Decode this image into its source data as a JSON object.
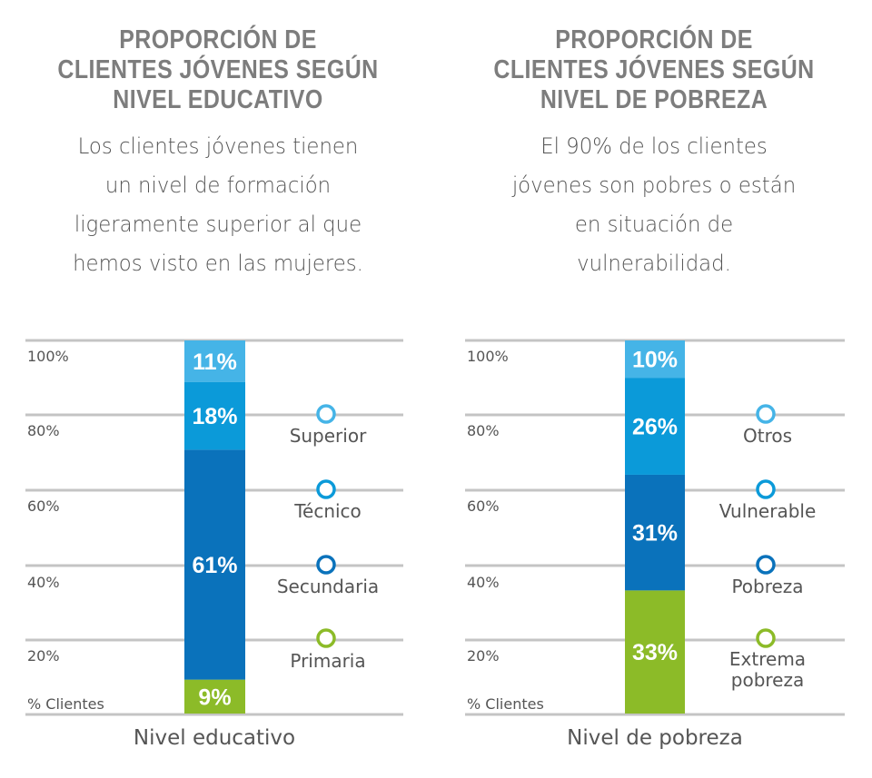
{
  "chart_data": [
    {
      "type": "bar",
      "stacked": true,
      "title": [
        "PROPORCIÓN DE",
        "CLIENTES JÓVENES SEGÚN",
        "NIVEL EDUCATIVO"
      ],
      "subtitle": [
        "Los clientes jóvenes tienen",
        "un nivel de formación",
        "ligeramente superior al que",
        "hemos visto en las mujeres."
      ],
      "xlabel": "Nivel educativo",
      "ylabel": "% Clientes",
      "yticks": [
        "100%",
        "80%",
        "60%",
        "40%",
        "20%"
      ],
      "ylim": [
        0,
        100
      ],
      "grid": true,
      "legend_position": "right",
      "series": [
        {
          "name": "Primaria",
          "value": 9,
          "label": "9%",
          "color": "#8cbb28"
        },
        {
          "name": "Secundaria",
          "value": 61,
          "label": "61%",
          "color": "#0a72bb"
        },
        {
          "name": "Técnico",
          "value": 18,
          "label": "18%",
          "color": "#0b9ad9"
        },
        {
          "name": "Superior",
          "value": 11,
          "label": "11%",
          "color": "#45b4e7"
        }
      ]
    },
    {
      "type": "bar",
      "stacked": true,
      "title": [
        "PROPORCIÓN DE",
        "CLIENTES JÓVENES SEGÚN",
        "NIVEL DE POBREZA"
      ],
      "subtitle": [
        "El 90% de los clientes",
        "jóvenes son pobres o están",
        "en situación de",
        "vulnerabilidad."
      ],
      "xlabel": "Nivel de pobreza",
      "ylabel": "% Clientes",
      "yticks": [
        "100%",
        "80%",
        "60%",
        "40%",
        "20%"
      ],
      "ylim": [
        0,
        100
      ],
      "grid": true,
      "legend_position": "right",
      "series": [
        {
          "name": [
            "Extrema",
            "pobreza"
          ],
          "value": 33,
          "label": "33%",
          "color": "#8cbb28"
        },
        {
          "name": [
            "Pobreza"
          ],
          "value": 31,
          "label": "31%",
          "color": "#0a72bb"
        },
        {
          "name": [
            "Vulnerable"
          ],
          "value": 26,
          "label": "26%",
          "color": "#0b9ad9"
        },
        {
          "name": [
            "Otros"
          ],
          "value": 10,
          "label": "10%",
          "color": "#45b4e7"
        }
      ]
    }
  ]
}
